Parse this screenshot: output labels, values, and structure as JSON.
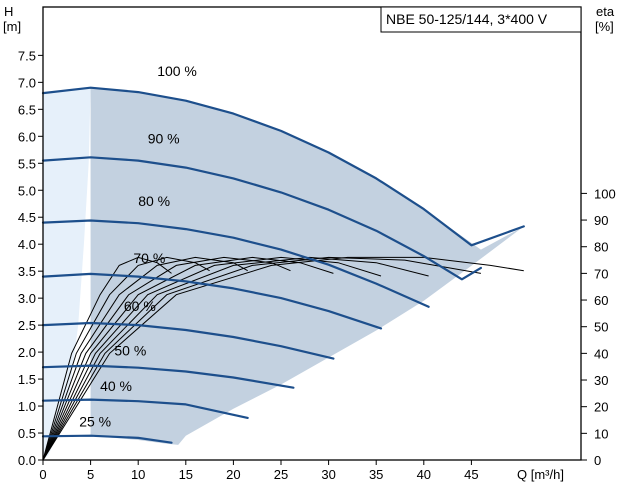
{
  "chart_data": {
    "type": "line",
    "title": "NBE 50-125/144, 3*400 V",
    "ylabel_lines": [
      "H",
      "[m]"
    ],
    "y2label_lines": [
      "eta",
      "[%]"
    ],
    "xlabel": "Q [m³/h]",
    "xlim": [
      0,
      55
    ],
    "ylim": [
      0,
      8
    ],
    "y2lim": [
      0,
      100
    ],
    "x_ticks": [
      0,
      5,
      10,
      15,
      20,
      25,
      30,
      35,
      40,
      45
    ],
    "x_tick_labels": [
      "0",
      "5",
      "10",
      "15",
      "20",
      "25",
      "30",
      "35",
      "40",
      "45"
    ],
    "y_ticks": [
      0,
      0.5,
      1.0,
      1.5,
      2.0,
      2.5,
      3.0,
      3.5,
      4.0,
      4.5,
      5.0,
      5.5,
      6.0,
      6.5,
      7.0,
      7.5
    ],
    "y_tick_labels": [
      "0.0",
      "0.5",
      "1.0",
      "1.5",
      "2.0",
      "2.5",
      "3.0",
      "3.5",
      "4.0",
      "4.5",
      "5.0",
      "5.5",
      "6.0",
      "6.5",
      "7.0",
      "7.5"
    ],
    "y2_ticks": [
      0,
      10,
      20,
      30,
      40,
      50,
      60,
      70,
      80,
      90,
      100
    ],
    "y2_tick_labels": [
      "0",
      "10",
      "20",
      "30",
      "40",
      "50",
      "60",
      "70",
      "80",
      "90",
      "100"
    ],
    "grid": false,
    "colors": {
      "head_curve": "#1d4f8c",
      "efficiency_curve": "#000000",
      "operating_area": "#c3d1e0",
      "low_flow_area": "#e6f0fa"
    },
    "operating_area": [
      [
        5,
        6.9
      ],
      [
        10,
        6.82
      ],
      [
        15,
        6.66
      ],
      [
        20,
        6.42
      ],
      [
        25,
        6.1
      ],
      [
        30,
        5.7
      ],
      [
        35,
        5.22
      ],
      [
        40,
        4.65
      ],
      [
        46,
        3.9
      ],
      [
        50.5,
        4.33
      ],
      [
        45,
        3.6
      ],
      [
        40,
        2.95
      ],
      [
        35,
        2.4
      ],
      [
        30,
        1.9
      ],
      [
        25,
        1.4
      ],
      [
        20,
        0.95
      ],
      [
        15,
        0.45
      ],
      [
        14.2,
        0.28
      ],
      [
        13,
        0.3
      ],
      [
        10,
        0.37
      ],
      [
        5,
        0.45
      ],
      [
        5,
        1.1
      ],
      [
        5,
        2.5
      ],
      [
        5,
        4.5
      ],
      [
        5,
        6.9
      ]
    ],
    "low_flow_area": [
      [
        0,
        6.8
      ],
      [
        2.5,
        6.87
      ],
      [
        5,
        6.9
      ],
      [
        4.8,
        5.5
      ],
      [
        4.3,
        4.0
      ],
      [
        3.7,
        2.5
      ],
      [
        2.8,
        1.3
      ],
      [
        1.5,
        0.5
      ],
      [
        0.6,
        0.1
      ],
      [
        0,
        0
      ]
    ],
    "head_curves": [
      {
        "label": "100 %",
        "speed_pct": 100,
        "points": [
          [
            0,
            6.8
          ],
          [
            5,
            6.9
          ],
          [
            10,
            6.82
          ],
          [
            15,
            6.66
          ],
          [
            20,
            6.42
          ],
          [
            25,
            6.1
          ],
          [
            30,
            5.7
          ],
          [
            35,
            5.22
          ],
          [
            40,
            4.65
          ],
          [
            45,
            3.98
          ],
          [
            50.5,
            4.33
          ]
        ]
      },
      {
        "label": "90 %",
        "speed_pct": 90,
        "points": [
          [
            0,
            5.55
          ],
          [
            5,
            5.61
          ],
          [
            10,
            5.55
          ],
          [
            15,
            5.42
          ],
          [
            20,
            5.22
          ],
          [
            25,
            4.96
          ],
          [
            30,
            4.64
          ],
          [
            35,
            4.25
          ],
          [
            40,
            3.78
          ],
          [
            44,
            3.35
          ],
          [
            46,
            3.56
          ]
        ]
      },
      {
        "label": "80 %",
        "speed_pct": 80,
        "points": [
          [
            0,
            4.4
          ],
          [
            5,
            4.44
          ],
          [
            10,
            4.39
          ],
          [
            15,
            4.28
          ],
          [
            20,
            4.12
          ],
          [
            25,
            3.9
          ],
          [
            30,
            3.62
          ],
          [
            35,
            3.27
          ],
          [
            40.5,
            2.84
          ]
        ]
      },
      {
        "label": "70 %",
        "speed_pct": 70,
        "points": [
          [
            0,
            3.4
          ],
          [
            5,
            3.45
          ],
          [
            10,
            3.4
          ],
          [
            15,
            3.31
          ],
          [
            20,
            3.18
          ],
          [
            25,
            3.0
          ],
          [
            30,
            2.76
          ],
          [
            35.5,
            2.44
          ]
        ]
      },
      {
        "label": "60 %",
        "speed_pct": 60,
        "points": [
          [
            0,
            2.5
          ],
          [
            5,
            2.54
          ],
          [
            10,
            2.5
          ],
          [
            15,
            2.41
          ],
          [
            20,
            2.28
          ],
          [
            25,
            2.11
          ],
          [
            30.5,
            1.88
          ]
        ]
      },
      {
        "label": "50 %",
        "speed_pct": 50,
        "points": [
          [
            0,
            1.72
          ],
          [
            5,
            1.75
          ],
          [
            10,
            1.71
          ],
          [
            15,
            1.64
          ],
          [
            20,
            1.53
          ],
          [
            26.3,
            1.34
          ]
        ]
      },
      {
        "label": "40 %",
        "speed_pct": 40,
        "points": [
          [
            0,
            1.1
          ],
          [
            5,
            1.12
          ],
          [
            10,
            1.09
          ],
          [
            15,
            1.03
          ],
          [
            21.5,
            0.78
          ]
        ]
      },
      {
        "label": "25 %",
        "speed_pct": 25,
        "points": [
          [
            0,
            0.44
          ],
          [
            5,
            0.45
          ],
          [
            10,
            0.41
          ],
          [
            13.5,
            0.32
          ]
        ]
      }
    ],
    "efficiency_curves": [
      {
        "points": [
          [
            0,
            0
          ],
          [
            3,
            40
          ],
          [
            6,
            62
          ],
          [
            8,
            73
          ],
          [
            10,
            76
          ],
          [
            12,
            74
          ],
          [
            13.5,
            70
          ]
        ]
      },
      {
        "points": [
          [
            0,
            0
          ],
          [
            3.5,
            40
          ],
          [
            7,
            62
          ],
          [
            10,
            73
          ],
          [
            13,
            76
          ],
          [
            16,
            74
          ],
          [
            17.5,
            71
          ]
        ]
      },
      {
        "points": [
          [
            0,
            0
          ],
          [
            4,
            40
          ],
          [
            8,
            62
          ],
          [
            12,
            73
          ],
          [
            16,
            76
          ],
          [
            20,
            74
          ],
          [
            21.5,
            71
          ]
        ]
      },
      {
        "points": [
          [
            0,
            0
          ],
          [
            4.5,
            40
          ],
          [
            9,
            62
          ],
          [
            14,
            73
          ],
          [
            19,
            76
          ],
          [
            24,
            74
          ],
          [
            26,
            71
          ]
        ]
      },
      {
        "points": [
          [
            0,
            0
          ],
          [
            5,
            40
          ],
          [
            10,
            62
          ],
          [
            16,
            73
          ],
          [
            22,
            76
          ],
          [
            27,
            74
          ],
          [
            30.5,
            70
          ]
        ]
      },
      {
        "points": [
          [
            0,
            0
          ],
          [
            5.5,
            40
          ],
          [
            11,
            62
          ],
          [
            18,
            73
          ],
          [
            25,
            76
          ],
          [
            31,
            74
          ],
          [
            35.5,
            69
          ]
        ]
      },
      {
        "points": [
          [
            0,
            0
          ],
          [
            6,
            40
          ],
          [
            12,
            62
          ],
          [
            20,
            73
          ],
          [
            28,
            76
          ],
          [
            35,
            74
          ],
          [
            40.5,
            69
          ]
        ]
      },
      {
        "points": [
          [
            0,
            0
          ],
          [
            6.5,
            40
          ],
          [
            13,
            62
          ],
          [
            22,
            73
          ],
          [
            30,
            76
          ],
          [
            38,
            75
          ],
          [
            46,
            70
          ]
        ]
      },
      {
        "points": [
          [
            0,
            0
          ],
          [
            7,
            40
          ],
          [
            14,
            62
          ],
          [
            24,
            73
          ],
          [
            32,
            76
          ],
          [
            40,
            76
          ],
          [
            47,
            73
          ],
          [
            50.5,
            71
          ]
        ]
      }
    ]
  }
}
